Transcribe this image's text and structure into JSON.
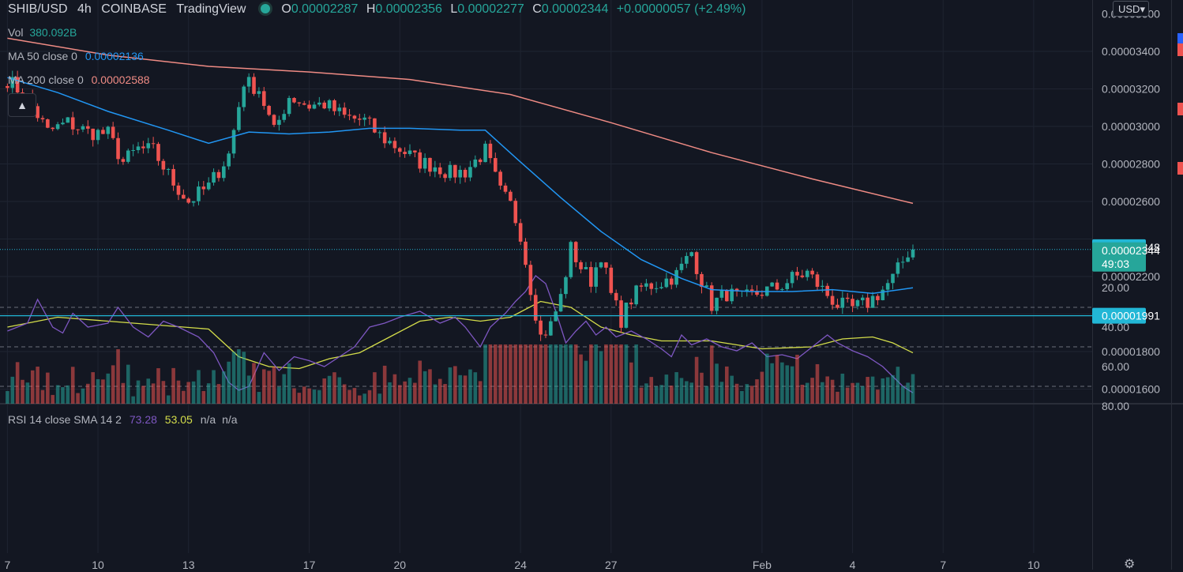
{
  "header": {
    "symbol": "SHIB/USD",
    "interval": "4h",
    "exchange": "COINBASE",
    "source": "TradingView",
    "o_label": "O",
    "o": "0.00002287",
    "h_label": "H",
    "h": "0.00002356",
    "l_label": "L",
    "l": "0.00002277",
    "c_label": "C",
    "c": "0.00002344",
    "change": "+0.00000057 (+2.49%)"
  },
  "indicators": {
    "vol_label": "Vol",
    "vol_value": "380.092B",
    "ma50_label": "MA 50 close 0",
    "ma50_value": "0.00002136",
    "ma200_label": "MA 200 close 0",
    "ma200_value": "0.00002588",
    "rsi_label": "RSI 14 close SMA 14 2",
    "rsi_value": "73.28",
    "rsi_sma_value": "53.05",
    "rsi_na1": "n/a",
    "rsi_na2": "n/a"
  },
  "controls": {
    "collapse_glyph": "▲",
    "currency": "USD▾",
    "gear_glyph": "⚙"
  },
  "colors": {
    "background": "#131722",
    "up": "#26a69a",
    "down": "#ef5350",
    "ma50": "#2196f3",
    "ma200": "#ef8b84",
    "rsi": "#7e57c2",
    "rsi_sma": "#d4dd4a",
    "hline": "#22b7d6"
  },
  "chart_data": {
    "type": "candlestick",
    "price_axis": {
      "ticks": [
        1.6e-05,
        1.8e-05,
        2e-05,
        2.2e-05,
        2.4e-05,
        2.6e-05,
        2.8e-05,
        3e-05,
        3.2e-05,
        3.4e-05
      ],
      "tick_labels": [
        "0.00001600",
        "0.00001800",
        "0.00002200",
        "0.00002600",
        "0.00002800",
        "0.00003000",
        "0.00003200",
        "0.00003400",
        "0.00003600"
      ],
      "tick_label_values": [
        1.6e-05,
        1.8e-05,
        2.2e-05,
        2.6e-05,
        2.8e-05,
        3e-05,
        3.2e-05,
        3.4e-05,
        3.6e-05
      ]
    },
    "x_axis": {
      "tick_labels": [
        "7",
        "10",
        "13",
        "17",
        "20",
        "24",
        "27",
        "Feb",
        "4",
        "7",
        "10"
      ],
      "tick_bars": [
        0,
        18,
        36,
        60,
        78,
        102,
        120,
        150,
        168,
        186,
        204
      ]
    },
    "horizontal_lines": [
      {
        "value": 2.344e-05,
        "label": "0.00002344",
        "countdown": "49:03",
        "color": "#26a69a"
      },
      {
        "value": 1.991e-05,
        "label": "0.00001991",
        "color": "#22b7d6"
      },
      {
        "value": 2.348e-05,
        "label": "0.00002348",
        "color": "#22b7d6",
        "tag_only": true
      }
    ],
    "keypoints": [
      {
        "bar": 0,
        "v": 3.25e-05
      },
      {
        "bar": 4,
        "v": 3.15e-05
      },
      {
        "bar": 8,
        "v": 2.97e-05
      },
      {
        "bar": 12,
        "v": 3.02e-05
      },
      {
        "bar": 16,
        "v": 2.97e-05
      },
      {
        "bar": 20,
        "v": 2.96e-05
      },
      {
        "bar": 23,
        "v": 2.81e-05
      },
      {
        "bar": 26,
        "v": 2.88e-05
      },
      {
        "bar": 29,
        "v": 2.87e-05
      },
      {
        "bar": 33,
        "v": 2.7e-05
      },
      {
        "bar": 36,
        "v": 2.6e-05
      },
      {
        "bar": 40,
        "v": 2.68e-05
      },
      {
        "bar": 44,
        "v": 2.85e-05
      },
      {
        "bar": 47,
        "v": 3.24e-05
      },
      {
        "bar": 50,
        "v": 3.2e-05
      },
      {
        "bar": 53,
        "v": 2.97e-05
      },
      {
        "bar": 56,
        "v": 3.16e-05
      },
      {
        "bar": 60,
        "v": 3.11e-05
      },
      {
        "bar": 63,
        "v": 3.12e-05
      },
      {
        "bar": 67,
        "v": 3.05e-05
      },
      {
        "bar": 71,
        "v": 3.03e-05
      },
      {
        "bar": 74,
        "v": 2.95e-05
      },
      {
        "bar": 78,
        "v": 2.88e-05
      },
      {
        "bar": 82,
        "v": 2.81e-05
      },
      {
        "bar": 85,
        "v": 2.79e-05
      },
      {
        "bar": 88,
        "v": 2.75e-05
      },
      {
        "bar": 91,
        "v": 2.76e-05
      },
      {
        "bar": 95,
        "v": 2.87e-05
      },
      {
        "bar": 98,
        "v": 2.65e-05
      },
      {
        "bar": 100,
        "v": 2.58e-05
      },
      {
        "bar": 102,
        "v": 2.43e-05
      },
      {
        "bar": 104,
        "v": 2.14e-05
      },
      {
        "bar": 106,
        "v": 1.88e-05
      },
      {
        "bar": 108,
        "v": 1.94e-05
      },
      {
        "bar": 110,
        "v": 2.09e-05
      },
      {
        "bar": 112,
        "v": 2.35e-05
      },
      {
        "bar": 114,
        "v": 2.25e-05
      },
      {
        "bar": 116,
        "v": 2.18e-05
      },
      {
        "bar": 118,
        "v": 2.32e-05
      },
      {
        "bar": 120,
        "v": 2.1e-05
      },
      {
        "bar": 122,
        "v": 1.97e-05
      },
      {
        "bar": 124,
        "v": 2.08e-05
      },
      {
        "bar": 126,
        "v": 2.14e-05
      },
      {
        "bar": 130,
        "v": 2.17e-05
      },
      {
        "bar": 133,
        "v": 2.21e-05
      },
      {
        "bar": 136,
        "v": 2.33e-05
      },
      {
        "bar": 138,
        "v": 2.18e-05
      },
      {
        "bar": 140,
        "v": 2.05e-05
      },
      {
        "bar": 143,
        "v": 2.11e-05
      },
      {
        "bar": 146,
        "v": 2.08e-05
      },
      {
        "bar": 150,
        "v": 2.12e-05
      },
      {
        "bar": 153,
        "v": 2.14e-05
      },
      {
        "bar": 156,
        "v": 2.19e-05
      },
      {
        "bar": 159,
        "v": 2.22e-05
      },
      {
        "bar": 162,
        "v": 2.13e-05
      },
      {
        "bar": 165,
        "v": 2.05e-05
      },
      {
        "bar": 168,
        "v": 2.03e-05
      },
      {
        "bar": 171,
        "v": 2.06e-05
      },
      {
        "bar": 174,
        "v": 2.13e-05
      },
      {
        "bar": 176,
        "v": 2.19e-05
      },
      {
        "bar": 178,
        "v": 2.28e-05
      },
      {
        "bar": 179,
        "v": 2.33e-05
      },
      {
        "bar": 180,
        "v": 2.34e-05
      }
    ],
    "ma50": [
      {
        "bar": 0,
        "v": 3.26e-05
      },
      {
        "bar": 10,
        "v": 3.18e-05
      },
      {
        "bar": 20,
        "v": 3.08e-05
      },
      {
        "bar": 32,
        "v": 2.98e-05
      },
      {
        "bar": 40,
        "v": 2.91e-05
      },
      {
        "bar": 48,
        "v": 2.97e-05
      },
      {
        "bar": 56,
        "v": 2.96e-05
      },
      {
        "bar": 64,
        "v": 2.97e-05
      },
      {
        "bar": 72,
        "v": 2.99e-05
      },
      {
        "bar": 80,
        "v": 2.99e-05
      },
      {
        "bar": 90,
        "v": 2.98e-05
      },
      {
        "bar": 95,
        "v": 2.98e-05
      },
      {
        "bar": 102,
        "v": 2.81e-05
      },
      {
        "bar": 110,
        "v": 2.62e-05
      },
      {
        "bar": 118,
        "v": 2.44e-05
      },
      {
        "bar": 126,
        "v": 2.29e-05
      },
      {
        "bar": 134,
        "v": 2.19e-05
      },
      {
        "bar": 140,
        "v": 2.13e-05
      },
      {
        "bar": 148,
        "v": 2.12e-05
      },
      {
        "bar": 156,
        "v": 2.12e-05
      },
      {
        "bar": 164,
        "v": 2.13e-05
      },
      {
        "bar": 172,
        "v": 2.11e-05
      },
      {
        "bar": 180,
        "v": 2.14e-05
      }
    ],
    "ma200": [
      {
        "bar": 0,
        "v": 3.47e-05
      },
      {
        "bar": 20,
        "v": 3.38e-05
      },
      {
        "bar": 40,
        "v": 3.32e-05
      },
      {
        "bar": 60,
        "v": 3.29e-05
      },
      {
        "bar": 80,
        "v": 3.25e-05
      },
      {
        "bar": 100,
        "v": 3.17e-05
      },
      {
        "bar": 120,
        "v": 3.02e-05
      },
      {
        "bar": 140,
        "v": 2.86e-05
      },
      {
        "bar": 160,
        "v": 2.72e-05
      },
      {
        "bar": 180,
        "v": 2.59e-05
      }
    ],
    "rsi": {
      "ticks": [
        20,
        40,
        60,
        80
      ],
      "tick_labels": [
        "20.00",
        "40.00",
        "60.00",
        "80.00"
      ],
      "bands": [
        30,
        50,
        70
      ],
      "rsi_points": [
        {
          "bar": 0,
          "v": 42
        },
        {
          "bar": 4,
          "v": 38
        },
        {
          "bar": 6,
          "v": 26
        },
        {
          "bar": 9,
          "v": 40
        },
        {
          "bar": 11,
          "v": 43
        },
        {
          "bar": 13,
          "v": 33
        },
        {
          "bar": 16,
          "v": 40
        },
        {
          "bar": 20,
          "v": 38
        },
        {
          "bar": 22,
          "v": 30
        },
        {
          "bar": 25,
          "v": 40
        },
        {
          "bar": 28,
          "v": 45
        },
        {
          "bar": 31,
          "v": 37
        },
        {
          "bar": 34,
          "v": 40
        },
        {
          "bar": 38,
          "v": 45
        },
        {
          "bar": 41,
          "v": 53
        },
        {
          "bar": 44,
          "v": 68
        },
        {
          "bar": 46,
          "v": 72
        },
        {
          "bar": 48,
          "v": 70
        },
        {
          "bar": 51,
          "v": 53
        },
        {
          "bar": 54,
          "v": 62
        },
        {
          "bar": 57,
          "v": 55
        },
        {
          "bar": 60,
          "v": 57
        },
        {
          "bar": 63,
          "v": 60
        },
        {
          "bar": 66,
          "v": 55
        },
        {
          "bar": 69,
          "v": 50
        },
        {
          "bar": 72,
          "v": 40
        },
        {
          "bar": 75,
          "v": 38
        },
        {
          "bar": 78,
          "v": 35
        },
        {
          "bar": 82,
          "v": 32
        },
        {
          "bar": 86,
          "v": 38
        },
        {
          "bar": 89,
          "v": 35
        },
        {
          "bar": 91,
          "v": 40
        },
        {
          "bar": 94,
          "v": 50
        },
        {
          "bar": 96,
          "v": 40
        },
        {
          "bar": 99,
          "v": 33
        },
        {
          "bar": 101,
          "v": 27
        },
        {
          "bar": 103,
          "v": 22
        },
        {
          "bar": 105,
          "v": 14
        },
        {
          "bar": 107,
          "v": 18
        },
        {
          "bar": 109,
          "v": 32
        },
        {
          "bar": 111,
          "v": 48
        },
        {
          "bar": 113,
          "v": 42
        },
        {
          "bar": 115,
          "v": 37
        },
        {
          "bar": 117,
          "v": 44
        },
        {
          "bar": 119,
          "v": 40
        },
        {
          "bar": 121,
          "v": 45
        },
        {
          "bar": 124,
          "v": 42
        },
        {
          "bar": 127,
          "v": 46
        },
        {
          "bar": 130,
          "v": 51
        },
        {
          "bar": 132,
          "v": 55
        },
        {
          "bar": 134,
          "v": 44
        },
        {
          "bar": 136,
          "v": 49
        },
        {
          "bar": 139,
          "v": 46
        },
        {
          "bar": 142,
          "v": 50
        },
        {
          "bar": 145,
          "v": 52
        },
        {
          "bar": 148,
          "v": 48
        },
        {
          "bar": 151,
          "v": 55
        },
        {
          "bar": 154,
          "v": 54
        },
        {
          "bar": 157,
          "v": 56
        },
        {
          "bar": 160,
          "v": 50
        },
        {
          "bar": 163,
          "v": 44
        },
        {
          "bar": 165,
          "v": 48
        },
        {
          "bar": 168,
          "v": 52
        },
        {
          "bar": 171,
          "v": 55
        },
        {
          "bar": 174,
          "v": 60
        },
        {
          "bar": 176,
          "v": 65
        },
        {
          "bar": 178,
          "v": 70
        },
        {
          "bar": 180,
          "v": 73.28
        }
      ],
      "sma_points": [
        {
          "bar": 0,
          "v": 40
        },
        {
          "bar": 10,
          "v": 35
        },
        {
          "bar": 20,
          "v": 37
        },
        {
          "bar": 30,
          "v": 39
        },
        {
          "bar": 40,
          "v": 41
        },
        {
          "bar": 46,
          "v": 55
        },
        {
          "bar": 52,
          "v": 60
        },
        {
          "bar": 58,
          "v": 61
        },
        {
          "bar": 64,
          "v": 56
        },
        {
          "bar": 70,
          "v": 53
        },
        {
          "bar": 76,
          "v": 45
        },
        {
          "bar": 82,
          "v": 37
        },
        {
          "bar": 88,
          "v": 35
        },
        {
          "bar": 94,
          "v": 37
        },
        {
          "bar": 100,
          "v": 35
        },
        {
          "bar": 106,
          "v": 27
        },
        {
          "bar": 112,
          "v": 30
        },
        {
          "bar": 118,
          "v": 40
        },
        {
          "bar": 124,
          "v": 44
        },
        {
          "bar": 130,
          "v": 47
        },
        {
          "bar": 140,
          "v": 47
        },
        {
          "bar": 150,
          "v": 51
        },
        {
          "bar": 160,
          "v": 50
        },
        {
          "bar": 166,
          "v": 46
        },
        {
          "bar": 172,
          "v": 45
        },
        {
          "bar": 176,
          "v": 48
        },
        {
          "bar": 180,
          "v": 53.05
        }
      ]
    }
  }
}
